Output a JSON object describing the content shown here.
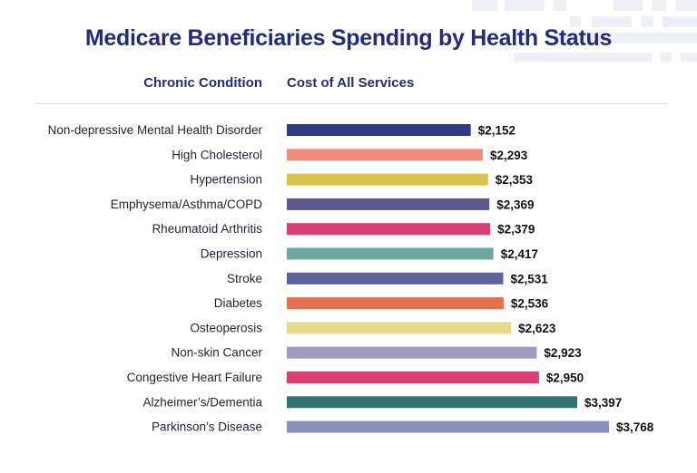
{
  "chart_data": {
    "type": "bar",
    "orientation": "horizontal",
    "title": "Medicare Beneficiaries Spending by Health Status",
    "category_header": "Chronic Condition",
    "value_header": "Cost of All Services",
    "categories": [
      "Non-depressive Mental Health Disorder",
      "High Cholesterol",
      "Hypertension",
      "Emphysema/Asthma/COPD",
      "Rheumatoid Arthritis",
      "Depression",
      "Stroke",
      "Diabetes",
      "Osteoperosis",
      "Non-skin Cancer",
      "Congestive Heart Failure",
      "Alzheimer’s/Dementia",
      "Parkinson’s Disease"
    ],
    "values": [
      2152,
      2293,
      2353,
      2369,
      2379,
      2417,
      2531,
      2536,
      2623,
      2923,
      2950,
      3397,
      3768
    ],
    "value_labels": [
      "$2,152",
      "$2,293",
      "$2,353",
      "$2,369",
      "$2,379",
      "$2,417",
      "$2,531",
      "$2,536",
      "$2,623",
      "$2,923",
      "$2,950",
      "$3,397",
      "$3,768"
    ],
    "colors": [
      "#2e3a85",
      "#ee8e7e",
      "#dbc24a",
      "#5e5890",
      "#d94072",
      "#6fa7a0",
      "#5b629e",
      "#e6714f",
      "#e8d88a",
      "#a09bbf",
      "#d94072",
      "#327371",
      "#8891bd"
    ],
    "xlim": [
      0,
      3768
    ],
    "grid": false,
    "legend": "none"
  }
}
